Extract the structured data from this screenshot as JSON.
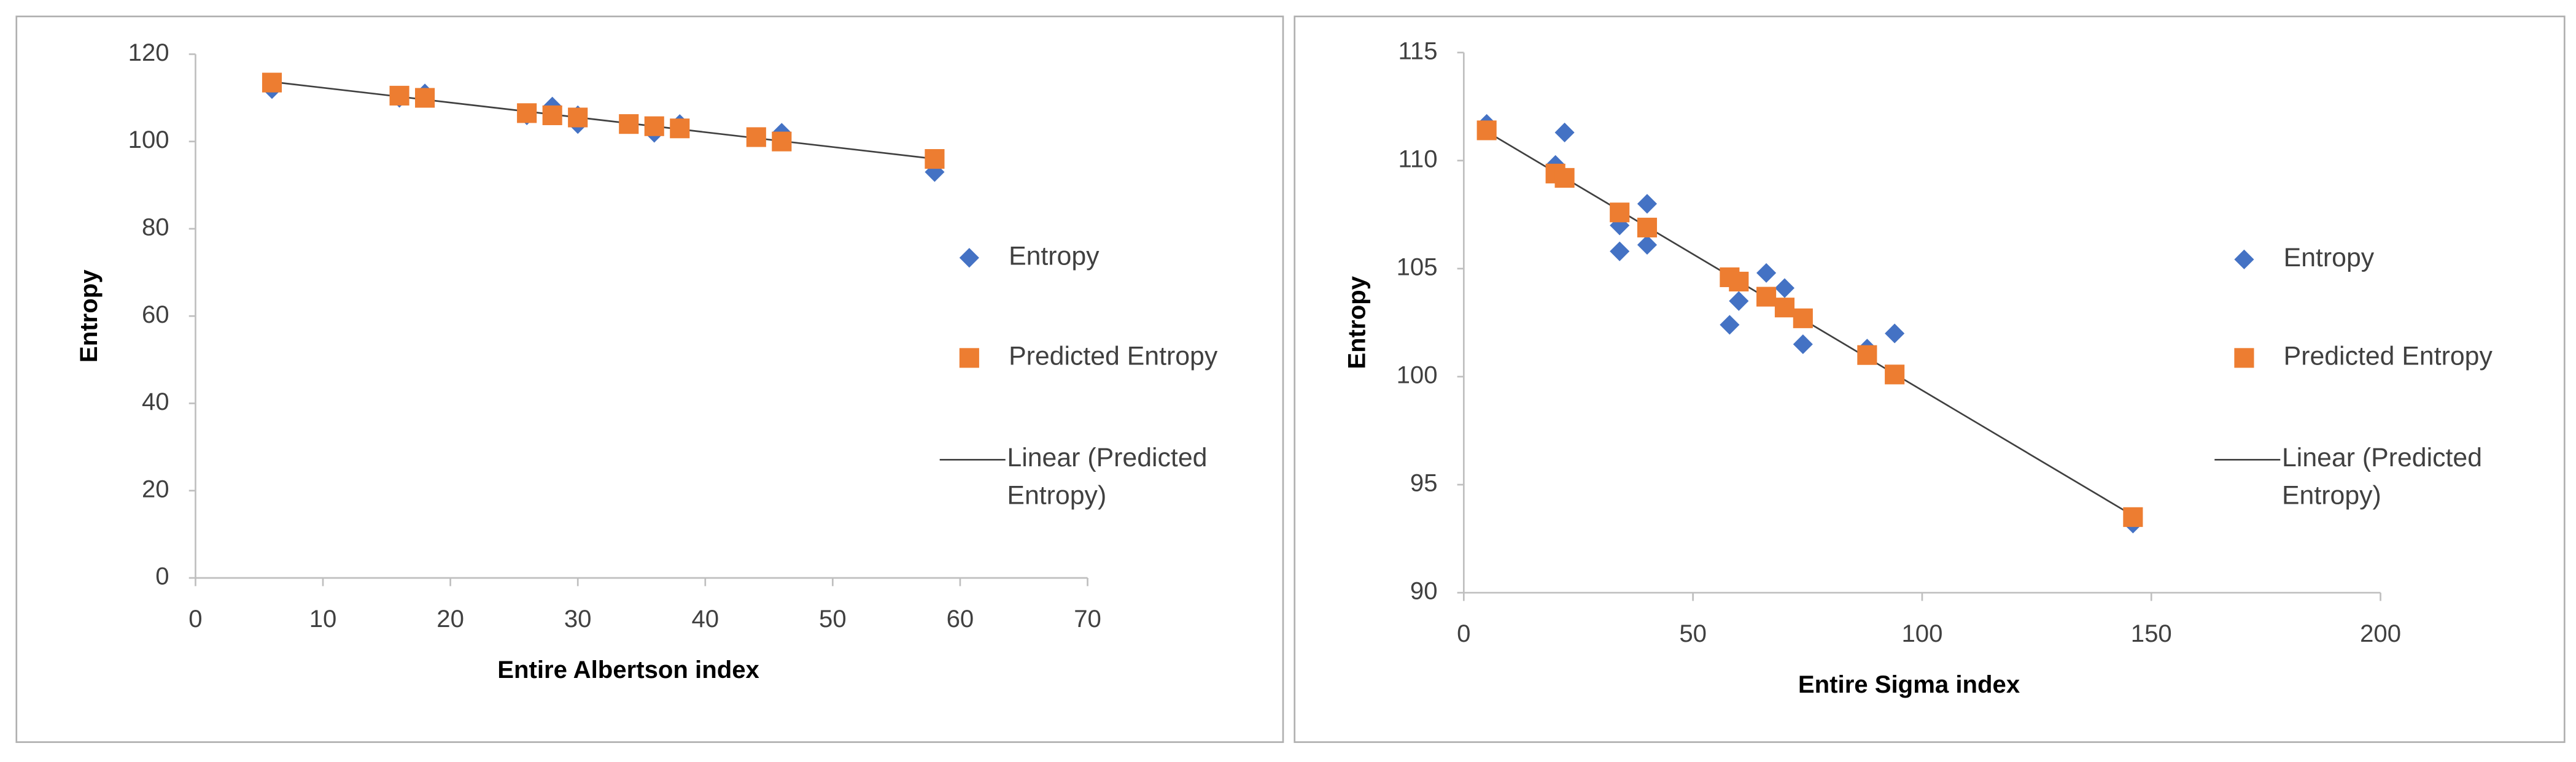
{
  "chart_data": [
    {
      "type": "scatter",
      "x_label": "Entire Albertson index",
      "y_label": "Entropy",
      "xlim": [
        0,
        70
      ],
      "xticks": [
        0,
        10,
        20,
        30,
        40,
        50,
        60,
        70
      ],
      "ylim": [
        0,
        120
      ],
      "yticks": [
        0,
        20,
        40,
        60,
        80,
        100,
        120
      ],
      "series": [
        {
          "name": "Entropy",
          "color": "#4472c4",
          "marker": "diamond",
          "x": [
            6,
            16,
            18,
            26,
            28,
            30,
            30,
            34,
            36,
            38,
            44,
            46,
            58
          ],
          "values": [
            112,
            110,
            111,
            106,
            108,
            104,
            106,
            104,
            102,
            104,
            101,
            102,
            93
          ]
        },
        {
          "name": "Predicted Entropy",
          "color": "#ed7d31",
          "marker": "square",
          "x": [
            6,
            16,
            18,
            26,
            28,
            30,
            34,
            36,
            38,
            44,
            46,
            58
          ],
          "values": [
            113.5,
            110.5,
            110,
            106.5,
            106,
            105.5,
            104,
            103.5,
            103,
            101,
            100,
            96
          ]
        }
      ],
      "trendline": {
        "name": "Linear (Predicted Entropy)",
        "color": "#404040",
        "of_series": 1
      }
    },
    {
      "type": "scatter",
      "x_label": "Entire Sigma index",
      "y_label": "Entropy",
      "xlim": [
        0,
        200
      ],
      "xticks": [
        0,
        50,
        100,
        150,
        200
      ],
      "ylim": [
        90,
        115
      ],
      "yticks": [
        90,
        95,
        100,
        105,
        110,
        115
      ],
      "series": [
        {
          "name": "Entropy",
          "color": "#4472c4",
          "marker": "diamond",
          "x": [
            5,
            20,
            22,
            34,
            34,
            40,
            40,
            58,
            60,
            66,
            70,
            74,
            88,
            94,
            146
          ],
          "values": [
            111.7,
            109.8,
            111.3,
            107,
            105.8,
            108,
            106.1,
            102.4,
            103.5,
            104.8,
            104.1,
            101.5,
            101.3,
            102,
            93.2
          ]
        },
        {
          "name": "Predicted Entropy",
          "color": "#ed7d31",
          "marker": "square",
          "x": [
            5,
            20,
            22,
            34,
            40,
            58,
            60,
            66,
            70,
            74,
            88,
            94,
            146
          ],
          "values": [
            111.4,
            109.4,
            109.2,
            107.6,
            106.9,
            104.6,
            104.4,
            103.7,
            103.2,
            102.7,
            101,
            100.1,
            93.5
          ]
        }
      ],
      "trendline": {
        "name": "Linear (Predicted Entropy)",
        "color": "#404040",
        "of_series": 1
      }
    }
  ]
}
